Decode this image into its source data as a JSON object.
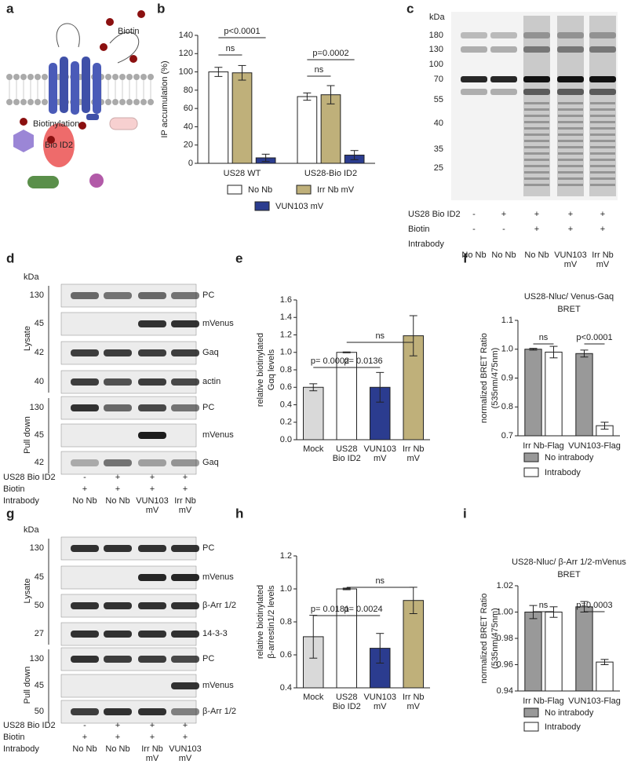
{
  "panel_labels": {
    "a": "a",
    "b": "b",
    "c": "c",
    "d": "d",
    "e": "e",
    "f": "f",
    "g": "g",
    "h": "h",
    "i": "i"
  },
  "diagram": {
    "biotin": "Biotin",
    "biotinylation": "Biotinylation",
    "bioid2": "Bio ID2"
  },
  "blots": {
    "c": {
      "kda_header": "kDa",
      "kda": [
        "180",
        "130",
        "100",
        "70",
        "55",
        "40",
        "35",
        "25"
      ],
      "conditions": [
        {
          "name": "US28 Bio ID2",
          "marks": [
            "-",
            "+",
            "+",
            "+",
            "+"
          ]
        },
        {
          "name": "Biotin",
          "marks": [
            "-",
            "-",
            "+",
            "+",
            "+"
          ]
        }
      ],
      "intrabody": {
        "name": "Intrabody",
        "lanes": [
          [
            "No Nb"
          ],
          [
            "No Nb"
          ],
          [
            "No Nb"
          ],
          [
            "VUN103",
            "mV"
          ],
          [
            "Irr Nb",
            "mV"
          ]
        ]
      }
    },
    "d": {
      "kda_header": "kDa",
      "groups": [
        {
          "name": "Lysate",
          "rows": [
            {
              "kda": "130",
              "label": "PC"
            },
            {
              "kda": "45",
              "label": "mVenus"
            },
            {
              "kda": "42",
              "label": "Gaq"
            },
            {
              "kda": "40",
              "label": "actin"
            }
          ]
        },
        {
          "name": "Pull down",
          "rows": [
            {
              "kda": "130",
              "label": "PC"
            },
            {
              "kda": "45",
              "label": "mVenus"
            },
            {
              "kda": "42",
              "label": "Gaq"
            }
          ]
        }
      ],
      "conditions": [
        {
          "name": "US28 Bio ID2",
          "marks": [
            "-",
            "+",
            "+",
            "+"
          ]
        },
        {
          "name": "Biotin",
          "marks": [
            "+",
            "+",
            "+",
            "+"
          ]
        }
      ],
      "intrabody": {
        "name": "Intrabody",
        "lanes": [
          [
            "No Nb"
          ],
          [
            "No Nb"
          ],
          [
            "VUN103",
            "mV"
          ],
          [
            "Irr Nb",
            "mV"
          ]
        ]
      }
    },
    "g": {
      "kda_header": "kDa",
      "groups": [
        {
          "name": "Lysate",
          "rows": [
            {
              "kda": "130",
              "label": "PC"
            },
            {
              "kda": "45",
              "label": "mVenus"
            },
            {
              "kda": "50",
              "label": "β-Arr 1/2"
            },
            {
              "kda": "27",
              "label": "14-3-3"
            }
          ]
        },
        {
          "name": "Pull down",
          "rows": [
            {
              "kda": "130",
              "label": "PC"
            },
            {
              "kda": "45",
              "label": "mVenus"
            },
            {
              "kda": "50",
              "label": "β-Arr 1/2"
            }
          ]
        }
      ],
      "conditions": [
        {
          "name": "US28 Bio ID2",
          "marks": [
            "-",
            "+",
            "+",
            "+"
          ]
        },
        {
          "name": "Biotin",
          "marks": [
            "+",
            "+",
            "+",
            "+"
          ]
        }
      ],
      "intrabody": {
        "name": "Intrabody",
        "lanes": [
          [
            "No Nb"
          ],
          [
            "No Nb"
          ],
          [
            "Irr Nb",
            "mV"
          ],
          [
            "VUN103",
            "mV"
          ]
        ]
      }
    }
  },
  "chart_data": [
    {
      "type": "bar",
      "ylabel": [
        "IP accumulation (%)"
      ],
      "categories": [
        "US28 WT",
        "US28-Bio ID2"
      ],
      "series": [
        {
          "name": "No Nb",
          "color": "#ffffff",
          "values": [
            100,
            73
          ],
          "errors": [
            5,
            4
          ]
        },
        {
          "name": "Irr Nb mV",
          "color": "#bfb07a",
          "values": [
            99,
            75
          ],
          "errors": [
            8,
            10
          ]
        },
        {
          "name": "VUN103 mV",
          "color": "#2b3c8f",
          "values": [
            6,
            9
          ],
          "errors": [
            4,
            5
          ]
        }
      ],
      "ylim": [
        0,
        140
      ],
      "yticks": [
        0,
        20,
        40,
        60,
        80,
        100,
        120,
        140
      ],
      "annotations": [
        "p<0.0001",
        "ns",
        "p=0.0002",
        "ns"
      ]
    },
    {
      "type": "bar",
      "ylabel": [
        "relative biotinylated",
        "Gαq levels"
      ],
      "categories": [
        [
          "Mock"
        ],
        [
          "US28",
          "Bio ID2"
        ],
        [
          "VUN103",
          "mV"
        ],
        [
          "Irr Nb",
          "mV"
        ]
      ],
      "values": [
        0.6,
        1.0,
        0.6,
        1.19
      ],
      "errors": [
        0.04,
        0.005,
        0.17,
        0.23
      ],
      "colors": [
        "#d9d9d9",
        "#ffffff",
        "#2b3c8f",
        "#bfb07a"
      ],
      "ylim": [
        0,
        1.6
      ],
      "yticks": [
        {
          "value": 0,
          "label": "0.0"
        },
        0.2,
        0.4,
        0.6,
        0.8,
        {
          "value": 1,
          "label": "1.0"
        },
        1.2,
        1.4,
        1.6
      ],
      "annotations": [
        "p= 0.0002",
        "p= 0.0136",
        "ns"
      ]
    },
    {
      "type": "bar",
      "title": [
        "US28-Nluc/ Venus-Gaq",
        "BRET"
      ],
      "ylabel": [
        "normalized BRET Ratio",
        "(535nm/475nm)"
      ],
      "categories": [
        "Irr Nb-Flag",
        "VUN103-Flag"
      ],
      "series": [
        {
          "name": "No intrabody",
          "color": "#999999",
          "values": [
            1.0,
            0.985
          ],
          "errors": [
            0.003,
            0.012
          ]
        },
        {
          "name": "Intrabody",
          "color": "#ffffff",
          "values": [
            0.99,
            0.735
          ],
          "errors": [
            0.02,
            0.012
          ]
        }
      ],
      "ylim": [
        0.7,
        1.1
      ],
      "yticks": [
        0.7,
        0.8,
        0.9,
        {
          "value": 1,
          "label": "1.0"
        },
        1.1
      ],
      "annotations": [
        "ns",
        "p<0.0001"
      ]
    },
    {
      "type": "bar",
      "ylabel": [
        "relative biotinylated",
        "β-arrestin1/2  levels"
      ],
      "categories": [
        [
          "Mock"
        ],
        [
          "US28",
          "Bio ID2"
        ],
        [
          "VUN103",
          "mV"
        ],
        [
          "Irr Nb",
          "mV"
        ]
      ],
      "values": [
        0.71,
        1.0,
        0.64,
        0.93
      ],
      "errors": [
        0.13,
        0.005,
        0.09,
        0.08
      ],
      "colors": [
        "#d9d9d9",
        "#ffffff",
        "#2b3c8f",
        "#bfb07a"
      ],
      "ylim": [
        0.4,
        1.2
      ],
      "yticks": [
        0.4,
        0.6,
        0.8,
        {
          "value": 1,
          "label": "1.0"
        },
        1.2
      ],
      "annotations": [
        "p= 0.0181",
        "p= 0.0024",
        "ns"
      ]
    },
    {
      "type": "bar",
      "title": [
        "US28-Nluc/ β-Arr 1/2-mVenus",
        "BRET"
      ],
      "ylabel": [
        "normalized BRET Ratio",
        "(535nm/475nm)"
      ],
      "categories": [
        "Irr Nb-Flag",
        "VUN103-Flag"
      ],
      "series": [
        {
          "name": "No intrabody",
          "color": "#999999",
          "values": [
            1.0,
            1.004
          ],
          "errors": [
            0.005,
            0.004
          ]
        },
        {
          "name": "Intrabody",
          "color": "#ffffff",
          "values": [
            1.0,
            0.962
          ],
          "errors": [
            0.004,
            0.002
          ]
        }
      ],
      "ylim": [
        0.94,
        1.02
      ],
      "yticks": [
        0.94,
        0.96,
        0.98,
        {
          "value": 1,
          "label": "1.00"
        },
        1.02
      ],
      "annotations": [
        "ns",
        "p=0.0003"
      ]
    }
  ]
}
